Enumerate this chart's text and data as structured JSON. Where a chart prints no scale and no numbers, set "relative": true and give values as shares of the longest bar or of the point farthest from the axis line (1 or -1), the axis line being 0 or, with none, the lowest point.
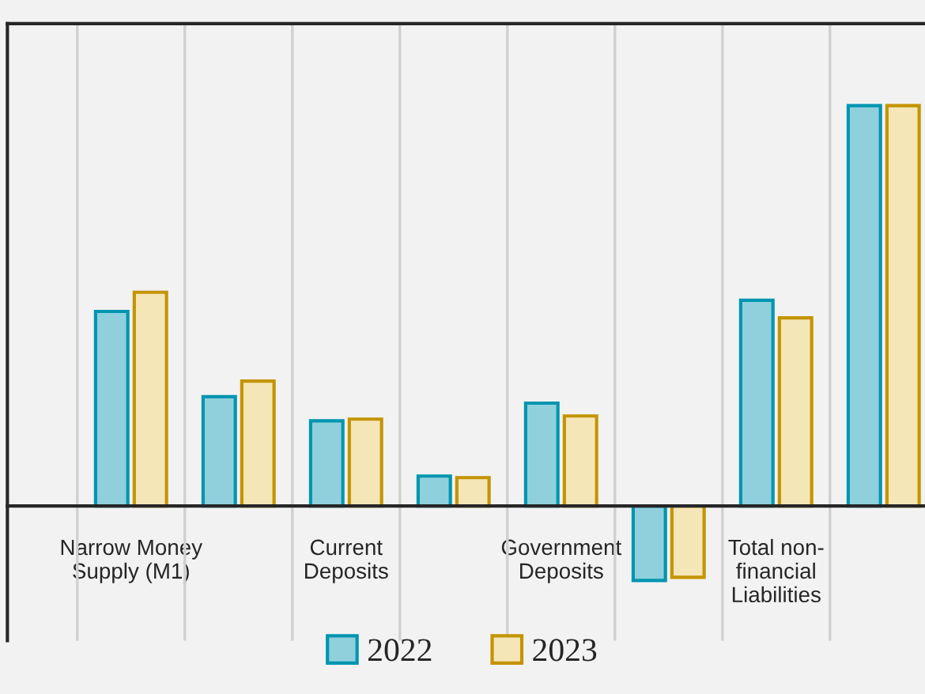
{
  "chart_data": {
    "type": "bar",
    "relative": true,
    "categories": [
      "Narrow Money\nSupply (M1)",
      null,
      "Current\nDeposits",
      null,
      "Government\nDeposits",
      null,
      "Total non-\nfinancial\nLiabilities",
      null
    ],
    "series": [
      {
        "name": "2022",
        "color": "#8fd0dc",
        "values": [
          0.486,
          0.273,
          0.213,
          0.075,
          0.257,
          -0.186,
          0.514,
          1
        ]
      },
      {
        "name": "2023",
        "color": "#f5e6b8",
        "values": [
          0.534,
          0.312,
          0.217,
          0.071,
          0.225,
          -0.178,
          0.47,
          1
        ]
      }
    ],
    "grid": "x",
    "legend": "bottom"
  }
}
